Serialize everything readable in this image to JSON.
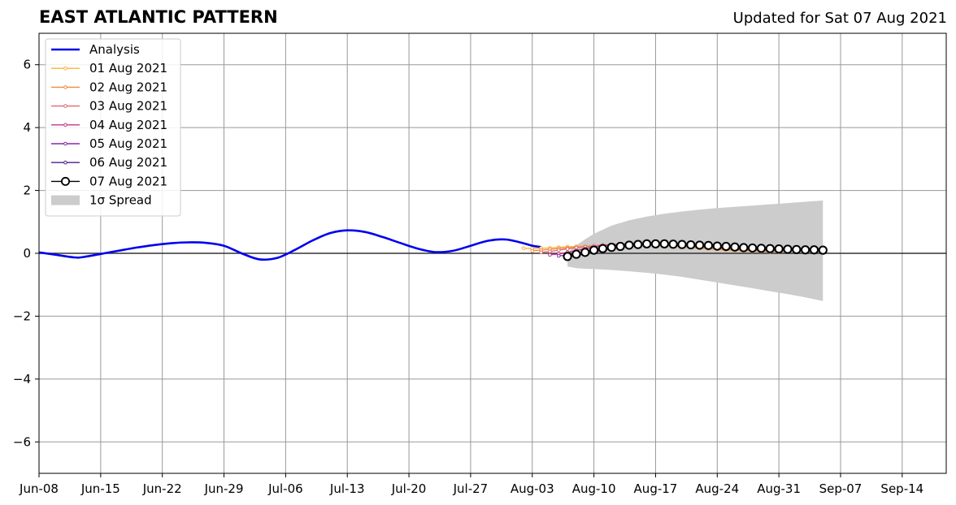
{
  "title": "EAST ATLANTIC PATTERN",
  "updated": "Updated for Sat 07 Aug 2021",
  "chart_data": {
    "type": "line",
    "title": "EAST ATLANTIC PATTERN",
    "xlabel": "",
    "ylabel": "",
    "x_ticks": [
      "Jun-08",
      "Jun-15",
      "Jun-22",
      "Jun-29",
      "Jul-06",
      "Jul-13",
      "Jul-20",
      "Jul-27",
      "Aug-03",
      "Aug-10",
      "Aug-17",
      "Aug-24",
      "Aug-31",
      "Sep-07",
      "Sep-14"
    ],
    "x_range": [
      "2021-06-08",
      "2021-09-19"
    ],
    "ylim": [
      -7,
      7
    ],
    "y_ticks": [
      "−6",
      "−4",
      "−2",
      "0",
      "2",
      "4",
      "6"
    ],
    "y_tick_values": [
      -6,
      -4,
      -2,
      0,
      2,
      4,
      6
    ],
    "grid": true,
    "legend_position": "top-left",
    "analysis": {
      "name": "Analysis",
      "color": "#0000ee",
      "x": [
        "2021-06-08",
        "2021-06-10",
        "2021-06-12",
        "2021-06-13",
        "2021-06-15",
        "2021-06-17",
        "2021-06-19",
        "2021-06-21",
        "2021-06-23",
        "2021-06-25",
        "2021-06-27",
        "2021-06-29",
        "2021-07-01",
        "2021-07-03",
        "2021-07-05",
        "2021-07-07",
        "2021-07-09",
        "2021-07-11",
        "2021-07-13",
        "2021-07-15",
        "2021-07-17",
        "2021-07-19",
        "2021-07-21",
        "2021-07-23",
        "2021-07-25",
        "2021-07-27",
        "2021-07-29",
        "2021-07-31",
        "2021-08-02",
        "2021-08-03",
        "2021-08-04"
      ],
      "y": [
        0.03,
        -0.05,
        -0.13,
        -0.12,
        -0.02,
        0.08,
        0.18,
        0.26,
        0.32,
        0.35,
        0.33,
        0.24,
        0.0,
        -0.19,
        -0.15,
        0.1,
        0.4,
        0.64,
        0.73,
        0.68,
        0.52,
        0.33,
        0.15,
        0.04,
        0.08,
        0.24,
        0.4,
        0.44,
        0.32,
        0.24,
        0.2
      ]
    },
    "series": [
      {
        "name": "01 Aug 2021",
        "color": "#f5b434",
        "x": [
          "2021-08-02",
          "2021-08-03",
          "2021-08-04",
          "2021-08-05",
          "2021-08-06",
          "2021-08-07",
          "2021-08-08",
          "2021-08-09",
          "2021-08-10",
          "2021-08-11",
          "2021-08-12",
          "2021-08-13",
          "2021-08-14",
          "2021-08-15",
          "2021-08-16",
          "2021-08-17",
          "2021-08-18",
          "2021-08-19",
          "2021-08-20",
          "2021-08-21",
          "2021-08-22",
          "2021-08-23",
          "2021-08-24",
          "2021-08-25",
          "2021-08-26",
          "2021-08-27",
          "2021-08-28",
          "2021-08-29",
          "2021-08-30",
          "2021-08-31"
        ],
        "y": [
          0.16,
          0.15,
          0.16,
          0.17,
          0.19,
          0.21,
          0.22,
          0.23,
          0.24,
          0.25,
          0.26,
          0.27,
          0.27,
          0.27,
          0.26,
          0.25,
          0.24,
          0.22,
          0.2,
          0.18,
          0.16,
          0.14,
          0.12,
          0.1,
          0.09,
          0.08,
          0.07,
          0.06,
          0.05,
          0.05
        ]
      },
      {
        "name": "02 Aug 2021",
        "color": "#f08a3e",
        "x": [
          "2021-08-03",
          "2021-08-04",
          "2021-08-05",
          "2021-08-06",
          "2021-08-07",
          "2021-08-08",
          "2021-08-09",
          "2021-08-10",
          "2021-08-11",
          "2021-08-12",
          "2021-08-13",
          "2021-08-14",
          "2021-08-15",
          "2021-08-16",
          "2021-08-17",
          "2021-08-18",
          "2021-08-19",
          "2021-08-20",
          "2021-08-21",
          "2021-08-22",
          "2021-08-23",
          "2021-08-24",
          "2021-08-25",
          "2021-08-26",
          "2021-08-27",
          "2021-08-28",
          "2021-08-29",
          "2021-08-30",
          "2021-08-31",
          "2021-09-01"
        ],
        "y": [
          0.08,
          0.1,
          0.13,
          0.15,
          0.17,
          0.19,
          0.21,
          0.23,
          0.25,
          0.27,
          0.28,
          0.29,
          0.29,
          0.28,
          0.27,
          0.26,
          0.24,
          0.22,
          0.2,
          0.18,
          0.16,
          0.14,
          0.12,
          0.1,
          0.09,
          0.08,
          0.07,
          0.06,
          0.06,
          0.05
        ]
      },
      {
        "name": "03 Aug 2021",
        "color": "#e06a70",
        "x": [
          "2021-08-04",
          "2021-08-05",
          "2021-08-06",
          "2021-08-07",
          "2021-08-08",
          "2021-08-09",
          "2021-08-10",
          "2021-08-11",
          "2021-08-12",
          "2021-08-13",
          "2021-08-14",
          "2021-08-15",
          "2021-08-16",
          "2021-08-17",
          "2021-08-18",
          "2021-08-19",
          "2021-08-20",
          "2021-08-21",
          "2021-08-22",
          "2021-08-23",
          "2021-08-24",
          "2021-08-25",
          "2021-08-26",
          "2021-08-27",
          "2021-08-28",
          "2021-08-29",
          "2021-08-30",
          "2021-08-31",
          "2021-09-01",
          "2021-09-02"
        ],
        "y": [
          0.03,
          0.06,
          0.1,
          0.14,
          0.18,
          0.21,
          0.24,
          0.26,
          0.28,
          0.3,
          0.31,
          0.31,
          0.3,
          0.29,
          0.27,
          0.25,
          0.23,
          0.21,
          0.19,
          0.17,
          0.15,
          0.13,
          0.12,
          0.11,
          0.1,
          0.09,
          0.09,
          0.08,
          0.08,
          0.08
        ]
      },
      {
        "name": "04 Aug 2021",
        "color": "#c2358e",
        "x": [
          "2021-08-05",
          "2021-08-06",
          "2021-08-07",
          "2021-08-08",
          "2021-08-09",
          "2021-08-10",
          "2021-08-11",
          "2021-08-12",
          "2021-08-13",
          "2021-08-14",
          "2021-08-15",
          "2021-08-16",
          "2021-08-17",
          "2021-08-18",
          "2021-08-19",
          "2021-08-20",
          "2021-08-21",
          "2021-08-22",
          "2021-08-23",
          "2021-08-24",
          "2021-08-25",
          "2021-08-26",
          "2021-08-27",
          "2021-08-28",
          "2021-08-29",
          "2021-08-30",
          "2021-08-31",
          "2021-09-01",
          "2021-09-02",
          "2021-09-03"
        ],
        "y": [
          -0.05,
          -0.02,
          0.03,
          0.09,
          0.15,
          0.2,
          0.24,
          0.27,
          0.29,
          0.3,
          0.31,
          0.31,
          0.3,
          0.29,
          0.27,
          0.25,
          0.23,
          0.21,
          0.19,
          0.17,
          0.16,
          0.15,
          0.14,
          0.13,
          0.12,
          0.11,
          0.1,
          0.1,
          0.09,
          0.09
        ]
      },
      {
        "name": "05 Aug 2021",
        "color": "#8b25a8",
        "x": [
          "2021-08-06",
          "2021-08-07",
          "2021-08-08",
          "2021-08-09",
          "2021-08-10",
          "2021-08-11",
          "2021-08-12",
          "2021-08-13",
          "2021-08-14",
          "2021-08-15",
          "2021-08-16",
          "2021-08-17",
          "2021-08-18",
          "2021-08-19",
          "2021-08-20",
          "2021-08-21",
          "2021-08-22",
          "2021-08-23",
          "2021-08-24",
          "2021-08-25",
          "2021-08-26",
          "2021-08-27",
          "2021-08-28",
          "2021-08-29",
          "2021-08-30",
          "2021-08-31",
          "2021-09-01",
          "2021-09-02",
          "2021-09-03",
          "2021-09-04"
        ],
        "y": [
          -0.08,
          -0.06,
          -0.02,
          0.04,
          0.1,
          0.15,
          0.19,
          0.22,
          0.25,
          0.27,
          0.28,
          0.28,
          0.28,
          0.27,
          0.26,
          0.24,
          0.23,
          0.21,
          0.2,
          0.18,
          0.17,
          0.16,
          0.15,
          0.14,
          0.13,
          0.12,
          0.11,
          0.11,
          0.1,
          0.1
        ]
      },
      {
        "name": "06 Aug 2021",
        "color": "#4b1d8c",
        "x": [
          "2021-08-07",
          "2021-08-08",
          "2021-08-09",
          "2021-08-10",
          "2021-08-11",
          "2021-08-12",
          "2021-08-13",
          "2021-08-14",
          "2021-08-15",
          "2021-08-16",
          "2021-08-17",
          "2021-08-18",
          "2021-08-19",
          "2021-08-20",
          "2021-08-21",
          "2021-08-22",
          "2021-08-23",
          "2021-08-24",
          "2021-08-25",
          "2021-08-26",
          "2021-08-27",
          "2021-08-28",
          "2021-08-29",
          "2021-08-30",
          "2021-08-31",
          "2021-09-01",
          "2021-09-02",
          "2021-09-03",
          "2021-09-04",
          "2021-09-05"
        ],
        "y": [
          -0.1,
          -0.07,
          -0.02,
          0.04,
          0.1,
          0.15,
          0.19,
          0.22,
          0.25,
          0.27,
          0.28,
          0.28,
          0.28,
          0.27,
          0.26,
          0.24,
          0.23,
          0.21,
          0.2,
          0.18,
          0.17,
          0.16,
          0.15,
          0.14,
          0.13,
          0.12,
          0.11,
          0.11,
          0.1,
          0.1
        ]
      },
      {
        "name": "07 Aug 2021",
        "color": "#000000",
        "x": [
          "2021-08-07",
          "2021-08-08",
          "2021-08-09",
          "2021-08-10",
          "2021-08-11",
          "2021-08-12",
          "2021-08-13",
          "2021-08-14",
          "2021-08-15",
          "2021-08-16",
          "2021-08-17",
          "2021-08-18",
          "2021-08-19",
          "2021-08-20",
          "2021-08-21",
          "2021-08-22",
          "2021-08-23",
          "2021-08-24",
          "2021-08-25",
          "2021-08-26",
          "2021-08-27",
          "2021-08-28",
          "2021-08-29",
          "2021-08-30",
          "2021-08-31",
          "2021-09-01",
          "2021-09-02",
          "2021-09-03",
          "2021-09-04",
          "2021-09-05"
        ],
        "y": [
          -0.1,
          -0.03,
          0.03,
          0.1,
          0.15,
          0.19,
          0.22,
          0.26,
          0.28,
          0.3,
          0.3,
          0.3,
          0.29,
          0.28,
          0.27,
          0.26,
          0.25,
          0.23,
          0.22,
          0.2,
          0.18,
          0.17,
          0.16,
          0.15,
          0.14,
          0.13,
          0.12,
          0.11,
          0.11,
          0.1
        ]
      }
    ],
    "spread": {
      "name": "1σ Spread",
      "color": "#cccccc",
      "x": [
        "2021-08-07",
        "2021-08-08",
        "2021-08-09",
        "2021-08-10",
        "2021-08-12",
        "2021-08-14",
        "2021-08-16",
        "2021-08-18",
        "2021-08-20",
        "2021-08-22",
        "2021-08-24",
        "2021-08-26",
        "2021-08-28",
        "2021-08-30",
        "2021-09-01",
        "2021-09-03",
        "2021-09-05"
      ],
      "upper": [
        0.02,
        0.25,
        0.45,
        0.62,
        0.88,
        1.05,
        1.17,
        1.26,
        1.33,
        1.39,
        1.44,
        1.48,
        1.52,
        1.56,
        1.6,
        1.64,
        1.68
      ],
      "lower": [
        -0.42,
        -0.47,
        -0.49,
        -0.5,
        -0.53,
        -0.57,
        -0.62,
        -0.68,
        -0.75,
        -0.84,
        -0.93,
        -1.02,
        -1.11,
        -1.21,
        -1.3,
        -1.4,
        -1.52
      ]
    },
    "legend": [
      "Analysis",
      "01 Aug 2021",
      "02 Aug 2021",
      "03 Aug 2021",
      "04 Aug 2021",
      "05 Aug 2021",
      "06 Aug 2021",
      "07 Aug 2021",
      "1σ Spread"
    ]
  }
}
